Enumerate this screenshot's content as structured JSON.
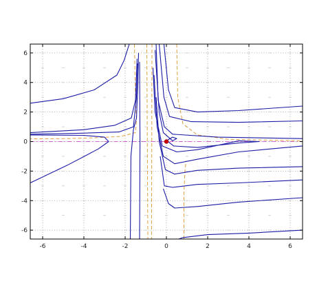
{
  "chart_data": {
    "type": "line",
    "title": "",
    "xlabel": "",
    "ylabel": "",
    "xlim": [
      -6.6,
      6.6
    ],
    "ylim": [
      -6.6,
      6.6
    ],
    "grid": true,
    "x_ticks": [
      -6,
      -4,
      -2,
      0,
      2,
      4,
      6
    ],
    "y_ticks": [
      6,
      4,
      2,
      0,
      -2,
      -4,
      -6
    ],
    "x_tick_labels": [
      "-6",
      "-4",
      "-2",
      "0",
      "2",
      "4",
      "6"
    ],
    "y_tick_labels": [
      "6",
      "4",
      "2",
      "0",
      "-2",
      "-4",
      "-6"
    ],
    "colors": {
      "trajectory": "#1a1aa6",
      "nullcline": "#e0a040",
      "zero_line": "#d060d0",
      "equilibrium": "#cc0000",
      "field_arrows": "#c8c8c8"
    },
    "equilibrium_point": [
      0,
      0
    ],
    "zero_line_y": 0,
    "nullclines": [
      {
        "points": [
          [
            -1.55,
            6.6
          ],
          [
            -1.5,
            3.0
          ],
          [
            -1.45,
            1.4
          ],
          [
            -1.5,
            0.6
          ],
          [
            -2.2,
            0.35
          ],
          [
            -3.5,
            0.25
          ],
          [
            -5.0,
            0.2
          ],
          [
            -6.6,
            0.18
          ]
        ]
      },
      {
        "points": [
          [
            -0.95,
            6.6
          ],
          [
            -0.9,
            -6.6
          ]
        ]
      },
      {
        "points": [
          [
            -0.7,
            6.6
          ],
          [
            -0.72,
            -6.6
          ]
        ]
      },
      {
        "points": [
          [
            0.5,
            6.6
          ],
          [
            0.55,
            3.0
          ],
          [
            0.8,
            1.2
          ],
          [
            1.5,
            0.45
          ],
          [
            3.0,
            0.15
          ],
          [
            6.6,
            0.05
          ]
        ]
      },
      {
        "points": [
          [
            0.85,
            -6.6
          ],
          [
            0.85,
            -3.5
          ],
          [
            0.9,
            -2.0
          ],
          [
            0.95,
            -1.3
          ]
        ]
      }
    ],
    "trajectories": [
      {
        "points": [
          [
            -6.6,
            2.6
          ],
          [
            -5.0,
            2.9
          ],
          [
            -3.5,
            3.5
          ],
          [
            -2.4,
            4.5
          ],
          [
            -2.05,
            5.5
          ],
          [
            -1.8,
            6.6
          ]
        ]
      },
      {
        "points": [
          [
            -6.6,
            0.6
          ],
          [
            -4.0,
            0.8
          ],
          [
            -2.5,
            1.1
          ],
          [
            -1.7,
            1.6
          ],
          [
            -1.5,
            2.8
          ],
          [
            -1.42,
            5.6
          ]
        ]
      },
      {
        "points": [
          [
            -6.6,
            0.5
          ],
          [
            -4.5,
            0.55
          ],
          [
            -2.3,
            0.65
          ],
          [
            -1.6,
            1.0
          ],
          [
            -1.45,
            3.0
          ],
          [
            -1.4,
            5.3
          ]
        ]
      },
      {
        "points": [
          [
            -6.6,
            0.45
          ],
          [
            -4.0,
            0.42
          ],
          [
            -3.0,
            0.3
          ],
          [
            -2.8,
            0.0
          ],
          [
            -3.3,
            -0.5
          ],
          [
            -4.8,
            -1.6
          ],
          [
            -6.6,
            -2.8
          ]
        ]
      },
      {
        "points": [
          [
            -1.3,
            5.4
          ],
          [
            -1.28,
            0.0
          ],
          [
            -1.3,
            -6.6
          ]
        ]
      },
      {
        "points": [
          [
            -1.75,
            -6.6
          ],
          [
            -1.72,
            -1.0
          ],
          [
            -1.6,
            0.8
          ],
          [
            -1.45,
            1.6
          ],
          [
            -1.38,
            4.0
          ],
          [
            -1.35,
            6.0
          ]
        ]
      },
      {
        "points": [
          [
            -0.12,
            6.6
          ],
          [
            0.1,
            3.5
          ],
          [
            0.4,
            2.3
          ],
          [
            1.5,
            2.0
          ],
          [
            3.5,
            2.1
          ],
          [
            6.6,
            2.4
          ]
        ]
      },
      {
        "points": [
          [
            -0.35,
            6.6
          ],
          [
            -0.12,
            3.0
          ],
          [
            0.15,
            1.7
          ],
          [
            1.2,
            1.35
          ],
          [
            3.5,
            1.3
          ],
          [
            6.6,
            1.4
          ]
        ]
      },
      {
        "points": [
          [
            -0.5,
            6.6
          ],
          [
            -0.4,
            2.8
          ],
          [
            -0.1,
            1.0
          ],
          [
            0.3,
            0.5
          ],
          [
            2.5,
            0.3
          ],
          [
            6.6,
            0.2
          ]
        ]
      },
      {
        "points": [
          [
            -0.55,
            6.2
          ],
          [
            -0.35,
            2.0
          ],
          [
            -0.15,
            0.6
          ],
          [
            0.3,
            0.05
          ],
          [
            0.5,
            0.2
          ],
          [
            0.3,
            0.3
          ],
          [
            0.05,
            0.1
          ]
        ]
      },
      {
        "points": [
          [
            0.0,
            0.1
          ],
          [
            0.35,
            -0.3
          ],
          [
            1.5,
            -0.4
          ],
          [
            3.5,
            -0.1
          ],
          [
            4.5,
            0.0
          ],
          [
            3.5,
            0.05
          ],
          [
            1.5,
            -0.55
          ],
          [
            0.5,
            -0.7
          ],
          [
            -0.2,
            -0.3
          ],
          [
            -0.55,
            2.0
          ],
          [
            -0.65,
            5.0
          ]
        ]
      },
      {
        "points": [
          [
            6.6,
            -0.3
          ],
          [
            3.5,
            -0.7
          ],
          [
            1.5,
            -1.2
          ],
          [
            0.4,
            -1.5
          ],
          [
            -0.15,
            -1.0
          ],
          [
            -0.45,
            1.0
          ],
          [
            -0.6,
            4.5
          ]
        ]
      },
      {
        "points": [
          [
            6.6,
            -1.7
          ],
          [
            3.5,
            -1.8
          ],
          [
            1.5,
            -1.95
          ],
          [
            0.4,
            -2.2
          ],
          [
            -0.05,
            -1.9
          ],
          [
            -0.35,
            0.0
          ],
          [
            -0.5,
            3.0
          ]
        ]
      },
      {
        "points": [
          [
            6.6,
            -2.6
          ],
          [
            3.5,
            -2.8
          ],
          [
            1.5,
            -2.9
          ],
          [
            0.3,
            -3.1
          ],
          [
            -0.1,
            -3.0
          ],
          [
            -0.3,
            -1.0
          ]
        ]
      },
      {
        "points": [
          [
            6.6,
            -3.8
          ],
          [
            3.5,
            -4.1
          ],
          [
            1.5,
            -4.4
          ],
          [
            0.4,
            -4.5
          ],
          [
            0.1,
            -4.2
          ],
          [
            -0.15,
            -3.2
          ]
        ]
      },
      {
        "points": [
          [
            6.6,
            -6.0
          ],
          [
            4.0,
            -6.2
          ],
          [
            2.0,
            -6.3
          ],
          [
            0.8,
            -6.5
          ],
          [
            0.6,
            -6.6
          ]
        ]
      }
    ]
  }
}
